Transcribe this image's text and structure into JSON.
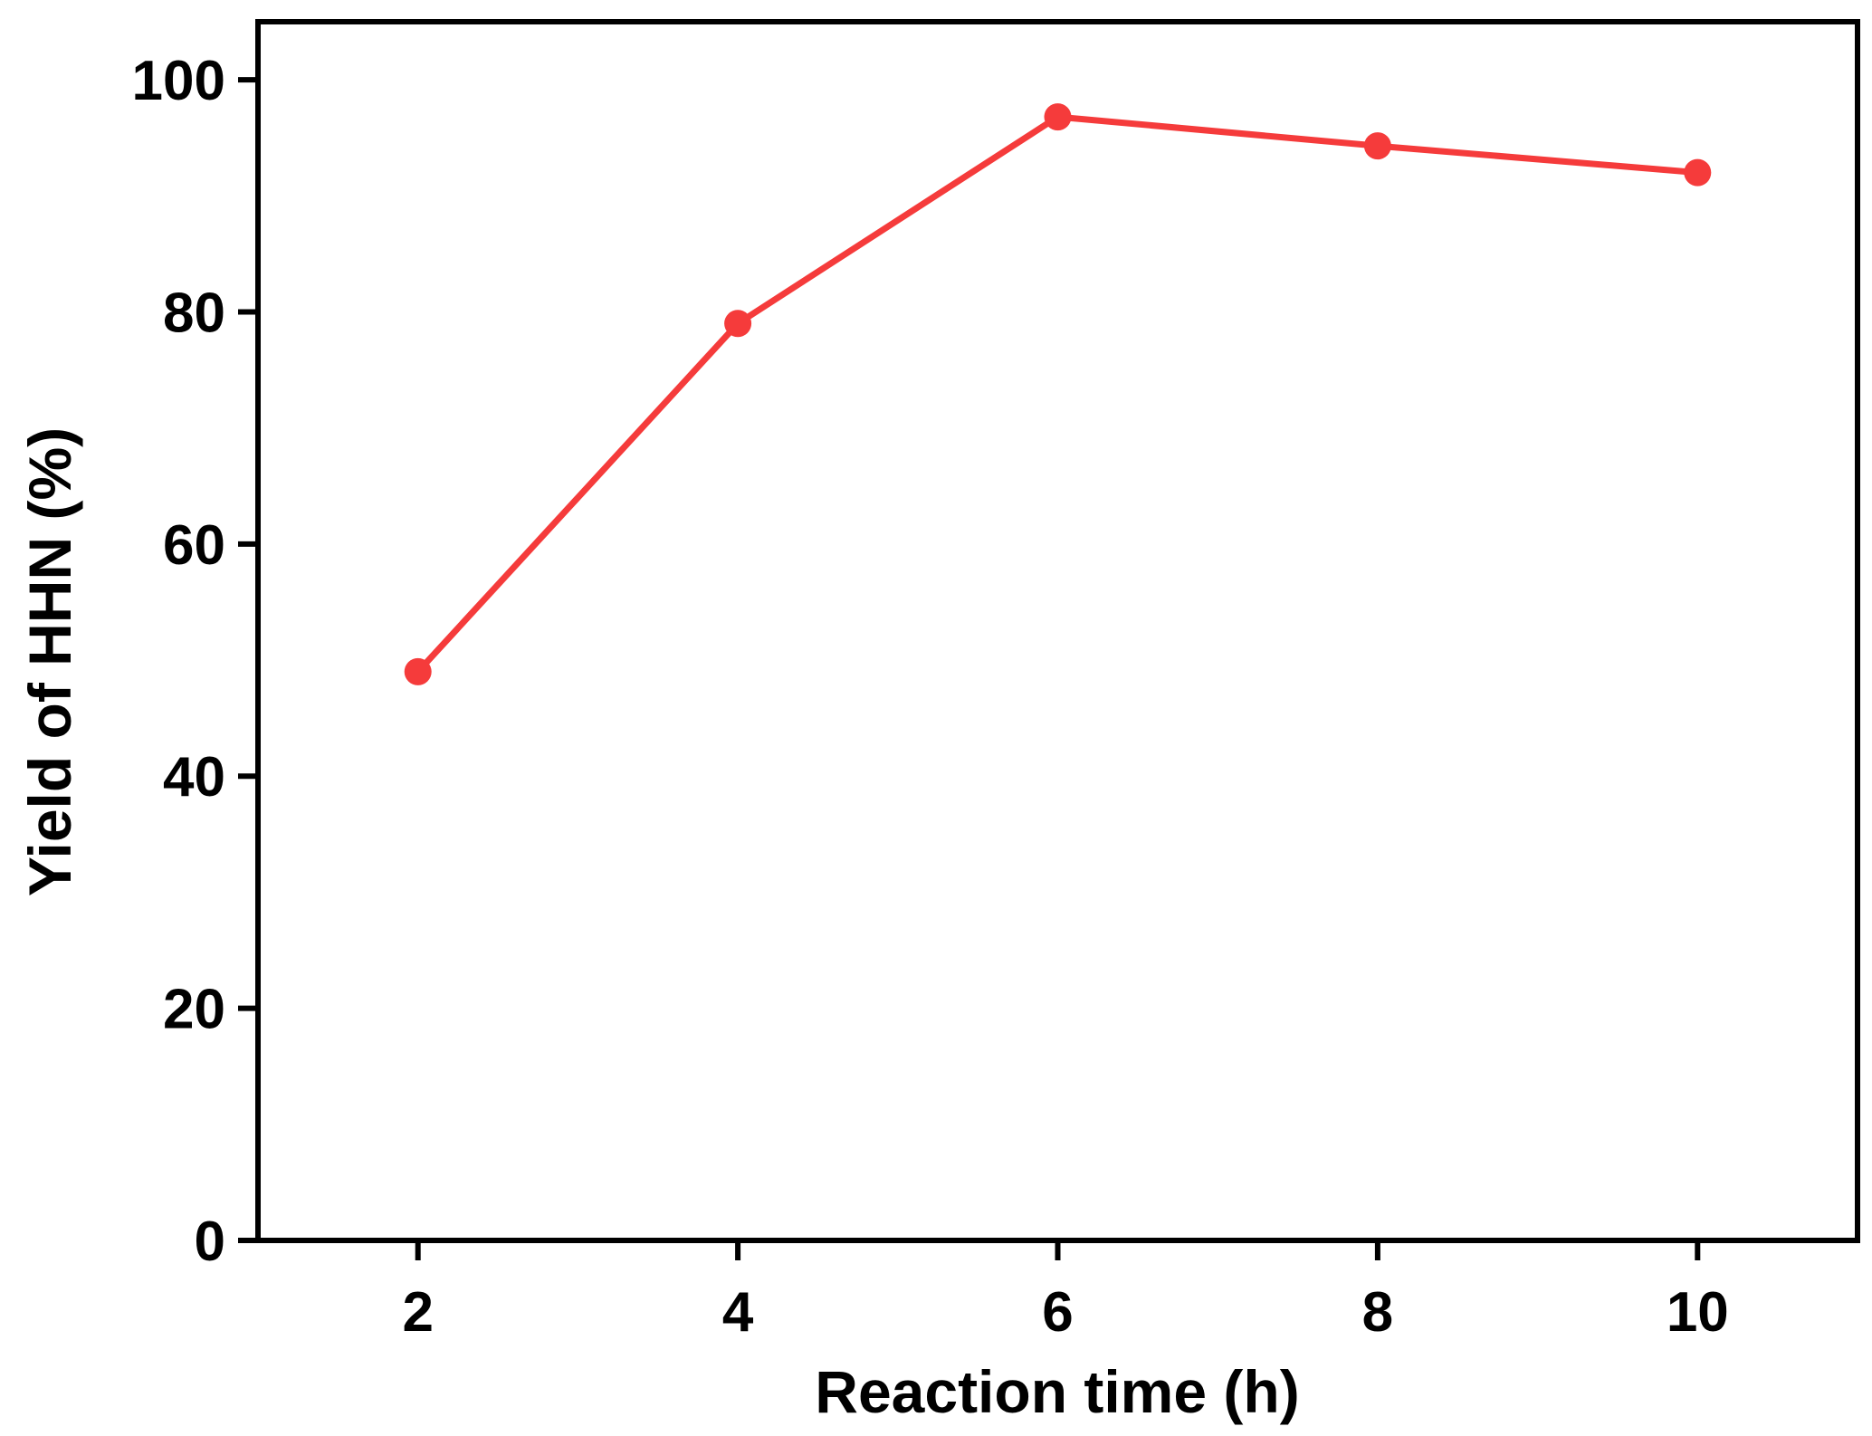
{
  "chart_data": {
    "type": "line",
    "title": "",
    "xlabel": "Reaction time (h)",
    "ylabel": "Yield of HHN (%)",
    "xlim": [
      1,
      11
    ],
    "ylim": [
      0,
      105
    ],
    "xticks": [
      2,
      4,
      6,
      8,
      10
    ],
    "yticks": [
      0,
      20,
      40,
      60,
      80,
      100
    ],
    "grid": false,
    "legend": "none",
    "series": [
      {
        "x": [
          2,
          4,
          6,
          8,
          10
        ],
        "y": [
          49,
          79,
          96.8,
          94.3,
          92
        ],
        "color": "#f53b3b",
        "marker": "circle"
      }
    ]
  }
}
